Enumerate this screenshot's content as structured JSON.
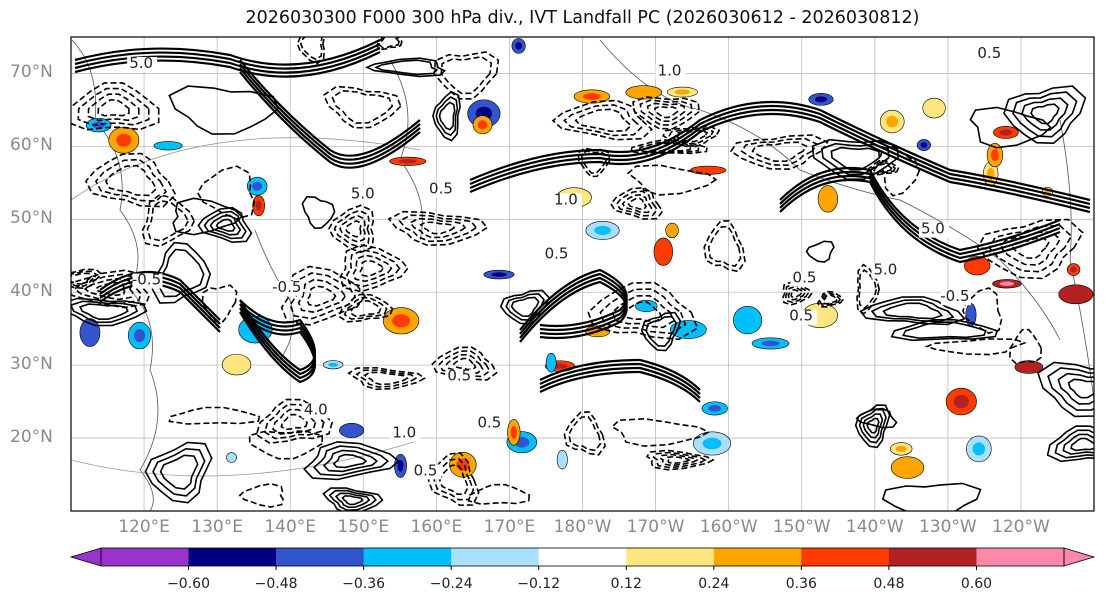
{
  "title": "2026030300 F000 300 hPa div., IVT Landfall PC (2026030612 - 2026030812)",
  "lat_labels": [
    "70°N",
    "60°N",
    "50°N",
    "40°N",
    "30°N",
    "20°N"
  ],
  "lon_labels": [
    "120°E",
    "130°E",
    "140°E",
    "150°E",
    "160°E",
    "170°E",
    "180°W",
    "170°W",
    "160°W",
    "150°W",
    "140°W",
    "130°W",
    "120°W"
  ],
  "contour_labels": [
    "5.0",
    "4.0",
    "5.0",
    "5.0",
    "1.0",
    "0.5",
    "0.5",
    "1.0",
    "0.5",
    "0.5",
    "0.5",
    "-0.5",
    "-0.5",
    "1.0",
    "0.5",
    "5.0",
    "0.5",
    "0.5",
    "-0.5"
  ],
  "colorbar": {
    "tick_labels": [
      "−0.60",
      "−0.48",
      "−0.36",
      "−0.24",
      "−0.12",
      "0.12",
      "0.24",
      "0.36",
      "0.48",
      "0.60"
    ],
    "colors": [
      "#9933cc",
      "#000080",
      "#3355cc",
      "#00bfff",
      "#aadfff",
      "#ffffff",
      "#ffe680",
      "#ffa500",
      "#ff3b00",
      "#b22222",
      "#ff88aa"
    ]
  },
  "chart_data": {
    "type": "contour-map",
    "title": "2026030300 F000 300 hPa div., IVT Landfall PC (2026030612 - 2026030812)",
    "lat_range": [
      10,
      75
    ],
    "lon_range": [
      110,
      250
    ],
    "lat_ticks": [
      70,
      60,
      50,
      40,
      30,
      20
    ],
    "lon_ticks": [
      120,
      130,
      140,
      150,
      160,
      170,
      180,
      190,
      200,
      210,
      220,
      230,
      240
    ],
    "contour_levels": [
      -5.0,
      -4.0,
      -1.0,
      -0.5,
      0.5,
      1.0,
      4.0,
      5.0
    ],
    "colorbar_levels": [
      -0.6,
      -0.48,
      -0.36,
      -0.24,
      -0.12,
      0.12,
      0.24,
      0.36,
      0.48,
      0.6
    ]
  }
}
